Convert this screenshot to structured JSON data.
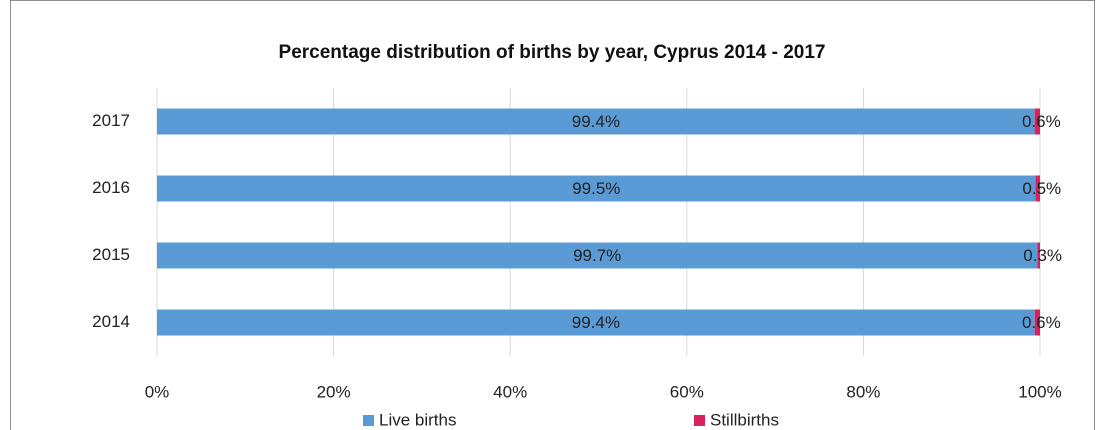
{
  "chart_data": {
    "type": "stacked-barh",
    "title": "Percentage distribution of births by year, Cyprus 2014 - 2017",
    "categories": [
      "2014",
      "2015",
      "2016",
      "2017"
    ],
    "series": [
      {
        "name": "Live births",
        "color": "#5b9bd5",
        "values": [
          99.4,
          99.7,
          99.5,
          99.4
        ],
        "value_labels": [
          "99.4%",
          "99.7%",
          "99.5%",
          "99.4%"
        ]
      },
      {
        "name": "Stillbirths",
        "color": "#d9215e",
        "values": [
          0.6,
          0.3,
          0.5,
          0.6
        ],
        "value_labels": [
          "0.6%",
          "0.3%",
          "0.5%",
          "0.6%"
        ]
      }
    ],
    "xlim": [
      0,
      100
    ],
    "xticks": [
      {
        "value": 0,
        "label": "0%"
      },
      {
        "value": 20,
        "label": "20%"
      },
      {
        "value": 40,
        "label": "40%"
      },
      {
        "value": 60,
        "label": "60%"
      },
      {
        "value": 80,
        "label": "80%"
      },
      {
        "value": 100,
        "label": "100%"
      }
    ],
    "grid": true,
    "legend": "bottom"
  }
}
